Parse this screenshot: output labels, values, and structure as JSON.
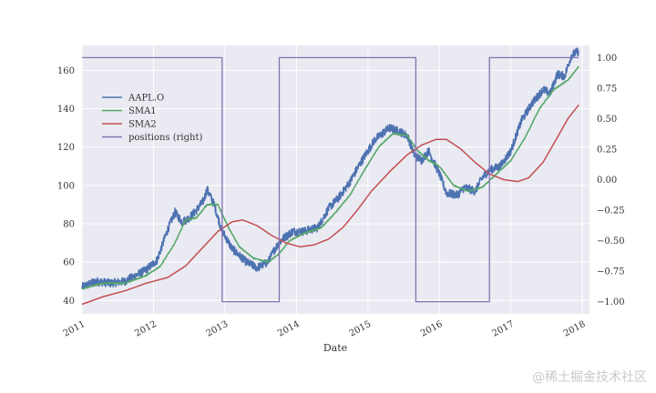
{
  "chart_data": {
    "type": "line",
    "title": "",
    "xlabel": "Date",
    "ylabel": "",
    "x_range": [
      2011.0,
      2018.1
    ],
    "ylim_left": [
      33,
      173
    ],
    "ylim_right": [
      -1.1,
      1.1
    ],
    "x_ticks": [
      {
        "value": 2011,
        "label": "2011"
      },
      {
        "value": 2012,
        "label": "2012"
      },
      {
        "value": 2013,
        "label": "2013"
      },
      {
        "value": 2014,
        "label": "2014"
      },
      {
        "value": 2015,
        "label": "2015"
      },
      {
        "value": 2016,
        "label": "2016"
      },
      {
        "value": 2017,
        "label": "2017"
      },
      {
        "value": 2018,
        "label": "2018"
      }
    ],
    "y_ticks_left": [
      {
        "value": 40,
        "label": "40"
      },
      {
        "value": 60,
        "label": "60"
      },
      {
        "value": 80,
        "label": "80"
      },
      {
        "value": 100,
        "label": "100"
      },
      {
        "value": 120,
        "label": "120"
      },
      {
        "value": 140,
        "label": "140"
      },
      {
        "value": 160,
        "label": "160"
      }
    ],
    "y_ticks_right": [
      {
        "value": 1.0,
        "label": "1.00"
      },
      {
        "value": 0.75,
        "label": "0.75"
      },
      {
        "value": 0.5,
        "label": "0.50"
      },
      {
        "value": 0.25,
        "label": "0.25"
      },
      {
        "value": 0.0,
        "label": "0.00"
      },
      {
        "value": -0.25,
        "label": "−0.25"
      },
      {
        "value": -0.5,
        "label": "−0.50"
      },
      {
        "value": -0.75,
        "label": "−0.75"
      },
      {
        "value": -1.0,
        "label": "−1.00"
      }
    ],
    "legend_position": "upper-left",
    "series": [
      {
        "name": "AAPL.O",
        "axis": "left",
        "color": "#4c72b0",
        "noise": 2.2,
        "points": [
          [
            2011.0,
            47
          ],
          [
            2011.2,
            50
          ],
          [
            2011.4,
            49
          ],
          [
            2011.6,
            50
          ],
          [
            2011.8,
            54
          ],
          [
            2011.9,
            56
          ],
          [
            2012.05,
            61
          ],
          [
            2012.2,
            77
          ],
          [
            2012.3,
            86
          ],
          [
            2012.4,
            81
          ],
          [
            2012.5,
            83
          ],
          [
            2012.6,
            87
          ],
          [
            2012.7,
            92
          ],
          [
            2012.75,
            98
          ],
          [
            2012.85,
            90
          ],
          [
            2012.95,
            77
          ],
          [
            2013.1,
            67
          ],
          [
            2013.3,
            60
          ],
          [
            2013.45,
            57
          ],
          [
            2013.6,
            60
          ],
          [
            2013.7,
            67
          ],
          [
            2013.8,
            72
          ],
          [
            2013.95,
            76
          ],
          [
            2014.1,
            76
          ],
          [
            2014.3,
            78
          ],
          [
            2014.45,
            88
          ],
          [
            2014.6,
            94
          ],
          [
            2014.75,
            102
          ],
          [
            2014.9,
            112
          ],
          [
            2015.1,
            124
          ],
          [
            2015.3,
            130
          ],
          [
            2015.45,
            128
          ],
          [
            2015.55,
            126
          ],
          [
            2015.65,
            116
          ],
          [
            2015.75,
            113
          ],
          [
            2015.85,
            118
          ],
          [
            2016.0,
            106
          ],
          [
            2016.1,
            96
          ],
          [
            2016.25,
            95
          ],
          [
            2016.35,
            99
          ],
          [
            2016.5,
            97
          ],
          [
            2016.6,
            104
          ],
          [
            2016.7,
            108
          ],
          [
            2016.85,
            110
          ],
          [
            2017.0,
            118
          ],
          [
            2017.15,
            134
          ],
          [
            2017.3,
            143
          ],
          [
            2017.45,
            150
          ],
          [
            2017.55,
            148
          ],
          [
            2017.65,
            158
          ],
          [
            2017.75,
            157
          ],
          [
            2017.85,
            168
          ],
          [
            2017.95,
            170
          ]
        ]
      },
      {
        "name": "SMA1",
        "axis": "left",
        "color": "#55a868",
        "noise": 0.25,
        "points": [
          [
            2011.0,
            46
          ],
          [
            2011.3,
            49
          ],
          [
            2011.6,
            49
          ],
          [
            2011.9,
            53
          ],
          [
            2012.1,
            58
          ],
          [
            2012.3,
            70
          ],
          [
            2012.45,
            82
          ],
          [
            2012.6,
            83
          ],
          [
            2012.75,
            90
          ],
          [
            2012.9,
            90
          ],
          [
            2013.05,
            78
          ],
          [
            2013.2,
            68
          ],
          [
            2013.4,
            62
          ],
          [
            2013.6,
            60
          ],
          [
            2013.75,
            64
          ],
          [
            2013.9,
            71
          ],
          [
            2014.1,
            75
          ],
          [
            2014.35,
            78
          ],
          [
            2014.55,
            86
          ],
          [
            2014.75,
            95
          ],
          [
            2014.95,
            108
          ],
          [
            2015.15,
            120
          ],
          [
            2015.35,
            127
          ],
          [
            2015.55,
            126
          ],
          [
            2015.7,
            118
          ],
          [
            2015.85,
            113
          ],
          [
            2016.0,
            110
          ],
          [
            2016.2,
            100
          ],
          [
            2016.4,
            97
          ],
          [
            2016.6,
            99
          ],
          [
            2016.8,
            106
          ],
          [
            2017.0,
            113
          ],
          [
            2017.2,
            125
          ],
          [
            2017.4,
            140
          ],
          [
            2017.6,
            150
          ],
          [
            2017.8,
            155
          ],
          [
            2017.95,
            162
          ]
        ]
      },
      {
        "name": "SMA2",
        "axis": "left",
        "color": "#c44e52",
        "noise": 0,
        "points": [
          [
            2011.0,
            38
          ],
          [
            2011.3,
            42
          ],
          [
            2011.6,
            45
          ],
          [
            2011.9,
            49
          ],
          [
            2012.2,
            52
          ],
          [
            2012.45,
            58
          ],
          [
            2012.7,
            68
          ],
          [
            2012.9,
            76
          ],
          [
            2013.1,
            81
          ],
          [
            2013.25,
            82
          ],
          [
            2013.45,
            79
          ],
          [
            2013.65,
            74
          ],
          [
            2013.85,
            70
          ],
          [
            2014.05,
            68
          ],
          [
            2014.25,
            69
          ],
          [
            2014.45,
            72
          ],
          [
            2014.65,
            78
          ],
          [
            2014.85,
            87
          ],
          [
            2015.05,
            97
          ],
          [
            2015.3,
            107
          ],
          [
            2015.55,
            116
          ],
          [
            2015.75,
            121
          ],
          [
            2015.95,
            124
          ],
          [
            2016.1,
            124
          ],
          [
            2016.3,
            119
          ],
          [
            2016.5,
            112
          ],
          [
            2016.7,
            106
          ],
          [
            2016.9,
            103
          ],
          [
            2017.1,
            102
          ],
          [
            2017.25,
            104
          ],
          [
            2017.45,
            112
          ],
          [
            2017.65,
            125
          ],
          [
            2017.8,
            135
          ],
          [
            2017.95,
            142
          ]
        ]
      },
      {
        "name": "positions (right)",
        "axis": "right",
        "color": "#8172b2",
        "noise": 0,
        "points": [
          [
            2011.0,
            1
          ],
          [
            2012.96,
            1
          ],
          [
            2012.96,
            -1
          ],
          [
            2013.76,
            -1
          ],
          [
            2013.76,
            1
          ],
          [
            2015.67,
            1
          ],
          [
            2015.67,
            -1
          ],
          [
            2016.7,
            -1
          ],
          [
            2016.7,
            1
          ],
          [
            2017.95,
            1
          ]
        ]
      }
    ]
  },
  "watermark": "@稀土掘金技术社区"
}
